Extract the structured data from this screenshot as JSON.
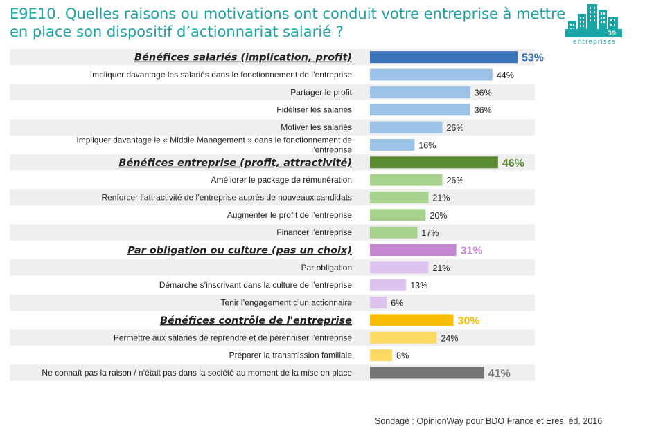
{
  "title": "E9E10. Quelles raisons ou motivations ont conduit votre entreprise à mettre en place son dispositif d’actionnariat salarié ?",
  "logo": {
    "count": "39",
    "word": "entreprises"
  },
  "source": "Sondage : OpinionWay pour BDO France et Eres, éd. 2016",
  "colors": {
    "title": "#1aa5a5",
    "stripe": "#efefef",
    "blue_header": "#3a73b8",
    "blue_item": "#9dc3e6",
    "green_header": "#5b8c33",
    "green_item": "#a9d18e",
    "purple_header": "#c586d2",
    "purple_item": "#dcc3ee",
    "yellow_header": "#fbbd00",
    "yellow_item": "#ffd966",
    "gray": "#767676"
  },
  "chart_data": {
    "type": "bar",
    "orientation": "horizontal",
    "unit": "%",
    "xlim": [
      0,
      53
    ],
    "categories": [
      "Bénéfices salariés (implication, profit)",
      "Impliquer davantage les salariés dans le fonctionnement de l’entreprise",
      "Partager le profit",
      "Fidéliser les salariés",
      "Motiver les salariés",
      "Impliquer davantage le « Middle Management » dans le fonctionnement de l’entreprise",
      "Bénéfices entreprise (profit, attractivité)",
      "Améliorer le package de rémunération",
      "Renforcer l’attractivité de l’entreprise auprès de nouveaux candidats",
      "Augmenter le profit de l’entreprise",
      "Financer l’entreprise",
      "Par obligation ou culture (pas un choix)",
      "Par obligation",
      "Démarche s’inscrivant dans la culture de l’entreprise",
      "Tenir l’engagement d’un actionnaire",
      "Bénéfices contrôle de l'entreprise",
      "Permettre aux salariés de reprendre et de pérenniser l’entreprise",
      "Préparer la transmission familiale",
      "Ne connaît pas la raison / n’était pas dans la société au moment de la mise en place"
    ],
    "values": [
      53,
      44,
      36,
      36,
      26,
      16,
      46,
      26,
      21,
      20,
      17,
      31,
      21,
      13,
      6,
      30,
      24,
      8,
      41
    ],
    "value_labels": [
      "53%",
      "44%",
      "36%",
      "36%",
      "26%",
      "16%",
      "46%",
      "26%",
      "21%",
      "20%",
      "17%",
      "31%",
      "21%",
      "13%",
      "6%",
      "30%",
      "24%",
      "8%",
      "41%"
    ],
    "group_headers": [
      0,
      6,
      11,
      15
    ],
    "bar_colors": [
      "#3a73b8",
      "#9dc3e6",
      "#9dc3e6",
      "#9dc3e6",
      "#9dc3e6",
      "#9dc3e6",
      "#5b8c33",
      "#a9d18e",
      "#a9d18e",
      "#a9d18e",
      "#a9d18e",
      "#c586d2",
      "#dcc3ee",
      "#dcc3ee",
      "#dcc3ee",
      "#fbbd00",
      "#ffd966",
      "#ffd966",
      "#767676"
    ]
  }
}
